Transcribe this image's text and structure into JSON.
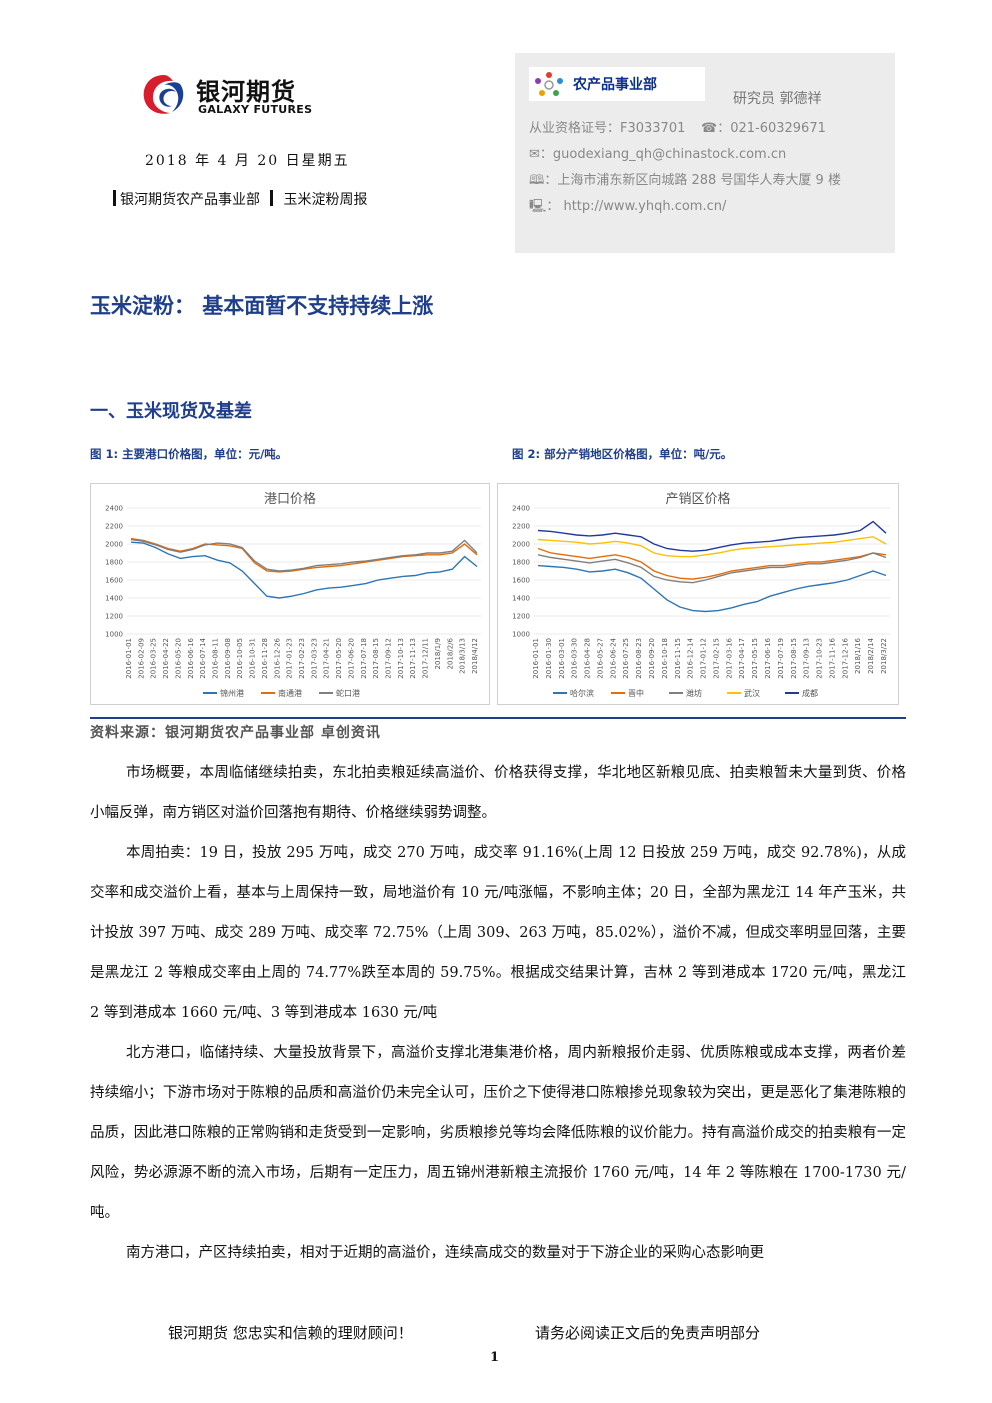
{
  "header": {
    "logo_cn": "银河期货",
    "logo_en": "GALAXY FUTURES",
    "date": "2018 年 4 月 20 日星期五",
    "dept_line": "银河期货农产品事业部",
    "report_name": "玉米淀粉周报"
  },
  "contact": {
    "dept_name": "农产品事业部",
    "analyst": "研究员   郭德祥",
    "license": "从业资格证号：F3033701",
    "phone": "☎：021-60329671",
    "email": "✉：guodexiang_qh@chinastock.com.cn",
    "address": "🕮：上海市浦东新区向城路 288 号国华人寿大厦 9 楼",
    "website": "🖳：  http://www.yhqh.com.cn/"
  },
  "title": "玉米淀粉：  基本面暂不支持持续上涨",
  "section1": "一、玉米现货及基差",
  "fig1_caption": "图 1:  主要港口价格图，单位：元/吨。",
  "fig2_caption": "图 2:  部分产销地区价格图，单位：吨/元。",
  "colors": {
    "brand_blue": "#1f3e8c",
    "series_blue": "#2e75b6",
    "series_orange": "#e46c0a",
    "series_gray": "#7f7f7f",
    "series_yellow": "#ffc000",
    "series_navy": "#203a9c"
  },
  "chart_data": [
    {
      "type": "line",
      "title": "港口价格",
      "ylim": [
        1000,
        2400
      ],
      "yticks": [
        1000,
        1200,
        1400,
        1600,
        1800,
        2000,
        2200,
        2400
      ],
      "x_tick_labels": [
        "2016-01-01",
        "2016-02-09",
        "2016-03-25",
        "2016-04-22",
        "2016-05-20",
        "2016-06-16",
        "2016-07-14",
        "2016-08-11",
        "2016-09-08",
        "2016-10-05",
        "2016-10-31",
        "2016-11-28",
        "2016-12-26",
        "2017-01-23",
        "2017-02-23",
        "2017-03-23",
        "2017-04-21",
        "2017-05-20",
        "2017-06-20",
        "2017-07-18",
        "2017-08-15",
        "2017-09-12",
        "2017-10-13",
        "2017-11-13",
        "2017-12/11",
        "2018/1/9",
        "2018/2/6",
        "2018/3/13",
        "2018/4/12"
      ],
      "legend_position": "bottom",
      "series": [
        {
          "name": "锦州港",
          "color": "#2e75b6",
          "values": [
            2020,
            2010,
            1960,
            1890,
            1840,
            1860,
            1870,
            1820,
            1790,
            1700,
            1560,
            1420,
            1400,
            1420,
            1450,
            1490,
            1510,
            1520,
            1540,
            1560,
            1600,
            1620,
            1640,
            1650,
            1680,
            1690,
            1720,
            1860,
            1750
          ]
        },
        {
          "name": "南通港",
          "color": "#e46c0a",
          "values": [
            2060,
            2040,
            2000,
            1950,
            1920,
            1950,
            2000,
            1990,
            1980,
            1950,
            1790,
            1700,
            1690,
            1700,
            1720,
            1740,
            1750,
            1760,
            1780,
            1800,
            1820,
            1840,
            1860,
            1870,
            1880,
            1880,
            1900,
            2000,
            1880
          ]
        },
        {
          "name": "蛇口港",
          "color": "#7f7f7f",
          "values": [
            2050,
            2030,
            1990,
            1940,
            1910,
            1940,
            1990,
            2010,
            2000,
            1960,
            1810,
            1720,
            1700,
            1710,
            1730,
            1760,
            1770,
            1780,
            1800,
            1810,
            1830,
            1850,
            1870,
            1880,
            1900,
            1900,
            1920,
            2040,
            1900
          ]
        }
      ]
    },
    {
      "type": "line",
      "title": "产销区价格",
      "ylim": [
        1000,
        2400
      ],
      "yticks": [
        1000,
        1200,
        1400,
        1600,
        1800,
        2000,
        2200,
        2400
      ],
      "x_tick_labels": [
        "2016-01-01",
        "2016-01-30",
        "2016-03-01",
        "2016-03-30",
        "2016-04-28",
        "2016-05-27",
        "2016-06-24",
        "2016-07-25",
        "2016-08-23",
        "2016-09-20",
        "2016-10-18",
        "2016-11-15",
        "2016-12-14",
        "2017-01-12",
        "2017-02-15",
        "2017-03-16",
        "2017-04-17",
        "2017-05-15",
        "2017-06-16",
        "2017-07-19",
        "2017-08-15",
        "2017-09-13",
        "2017-10-23",
        "2017-11-16",
        "2017-12-16",
        "2018/1/16",
        "2018/2/14",
        "2018/3/22"
      ],
      "legend_position": "bottom",
      "series": [
        {
          "name": "哈尔滨",
          "color": "#2e75b6",
          "values": [
            1760,
            1750,
            1740,
            1720,
            1690,
            1700,
            1720,
            1680,
            1620,
            1500,
            1380,
            1300,
            1260,
            1250,
            1260,
            1290,
            1330,
            1360,
            1420,
            1460,
            1500,
            1530,
            1550,
            1570,
            1600,
            1650,
            1700,
            1650
          ]
        },
        {
          "name": "晋中",
          "color": "#e46c0a",
          "values": [
            1950,
            1900,
            1880,
            1860,
            1840,
            1860,
            1880,
            1850,
            1800,
            1700,
            1650,
            1620,
            1610,
            1630,
            1660,
            1700,
            1720,
            1740,
            1760,
            1760,
            1780,
            1800,
            1800,
            1820,
            1840,
            1860,
            1900,
            1880
          ]
        },
        {
          "name": "潍坊",
          "color": "#7f7f7f",
          "values": [
            1880,
            1850,
            1830,
            1810,
            1790,
            1810,
            1830,
            1790,
            1740,
            1640,
            1600,
            1580,
            1570,
            1600,
            1640,
            1680,
            1700,
            1720,
            1740,
            1740,
            1760,
            1780,
            1780,
            1800,
            1820,
            1850,
            1900,
            1850
          ]
        },
        {
          "name": "武汉",
          "color": "#ffc000",
          "values": [
            2050,
            2040,
            2030,
            2020,
            2000,
            2010,
            2030,
            2010,
            1980,
            1900,
            1870,
            1860,
            1860,
            1880,
            1900,
            1930,
            1950,
            1960,
            1970,
            1980,
            1990,
            2000,
            2010,
            2020,
            2040,
            2060,
            2080,
            2000
          ]
        },
        {
          "name": "成都",
          "color": "#203a9c",
          "values": [
            2150,
            2140,
            2120,
            2100,
            2090,
            2100,
            2120,
            2100,
            2080,
            2000,
            1950,
            1930,
            1920,
            1930,
            1960,
            1990,
            2010,
            2020,
            2030,
            2050,
            2070,
            2080,
            2090,
            2100,
            2120,
            2150,
            2250,
            2120
          ]
        }
      ]
    }
  ],
  "source": "资料来源：银河期货农产品事业部  卓创资讯",
  "paragraphs": [
    "市场概要，本周临储继续拍卖，东北拍卖粮延续高溢价、价格获得支撑，华北地区新粮见底、拍卖粮暂未大量到货、价格小幅反弹，南方销区对溢价回落抱有期待、价格继续弱势调整。",
    "本周拍卖：19 日，投放 295 万吨，成交 270 万吨，成交率 91.16%(上周 12 日投放 259 万吨，成交 92.78%)，从成交率和成交溢价上看，基本与上周保持一致，局地溢价有 10 元/吨涨幅，不影响主体；20 日，全部为黑龙江 14 年产玉米，共计投放 397 万吨、成交 289 万吨、成交率 72.75%（上周 309、263 万吨，85.02%），溢价不减，但成交率明显回落，主要是黑龙江 2 等粮成交率由上周的 74.77%跌至本周的 59.75%。根据成交结果计算，吉林 2 等到港成本 1720 元/吨，黑龙江 2 等到港成本 1660 元/吨、3 等到港成本 1630 元/吨",
    "北方港口，临储持续、大量投放背景下，高溢价支撑北港集港价格，周内新粮报价走弱、优质陈粮或成本支撑，两者价差持续缩小；下游市场对于陈粮的品质和高溢价仍未完全认可，压价之下使得港口陈粮掺兑现象较为突出，更是恶化了集港陈粮的品质，因此港口陈粮的正常购销和走货受到一定影响，劣质粮掺兑等均会降低陈粮的议价能力。持有高溢价成交的拍卖粮有一定风险，势必源源不断的流入市场，后期有一定压力，周五锦州港新粮主流报价 1760 元/吨，14 年 2 等陈粮在 1700-1730 元/吨。",
    "南方港口，产区持续拍卖，相对于近期的高溢价，连续高成交的数量对于下游企业的采购心态影响更"
  ],
  "footer": {
    "left": "银河期货  您忠实和信赖的理财顾问！",
    "right": "请务必阅读正文后的免责声明部分",
    "page": "1"
  }
}
